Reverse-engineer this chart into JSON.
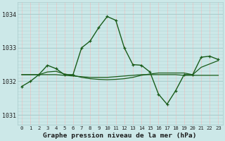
{
  "title": "Graphe pression niveau de la mer (hPa)",
  "bg_color": "#cce8e8",
  "grid_color_v": "#e8c8c8",
  "grid_color_h": "#aacccc",
  "line_color": "#1a5c1a",
  "line1": [
    1031.85,
    1032.0,
    1032.2,
    1032.48,
    1032.38,
    1032.2,
    1032.2,
    1033.0,
    1033.2,
    1033.6,
    1033.93,
    1033.82,
    1033.0,
    1032.5,
    1032.48,
    1032.28,
    1031.62,
    1031.32,
    1031.72,
    1032.2,
    1032.2,
    1032.72,
    1032.75,
    1032.65
  ],
  "line2": [
    1032.2,
    1032.2,
    1032.2,
    1032.28,
    1032.3,
    1032.22,
    1032.18,
    1032.12,
    1032.08,
    1032.06,
    1032.05,
    1032.06,
    1032.08,
    1032.12,
    1032.18,
    1032.22,
    1032.25,
    1032.25,
    1032.25,
    1032.25,
    1032.2,
    1032.42,
    1032.52,
    1032.62
  ],
  "line3": [
    1032.2,
    1032.2,
    1032.2,
    1032.2,
    1032.2,
    1032.18,
    1032.16,
    1032.14,
    1032.12,
    1032.12,
    1032.12,
    1032.14,
    1032.16,
    1032.18,
    1032.2,
    1032.2,
    1032.2,
    1032.2,
    1032.2,
    1032.18,
    1032.18,
    1032.18,
    1032.18,
    1032.18
  ],
  "yticks": [
    1031,
    1032,
    1033,
    1034
  ],
  "xticks": [
    0,
    1,
    2,
    3,
    4,
    5,
    6,
    7,
    8,
    9,
    10,
    11,
    12,
    13,
    14,
    15,
    16,
    17,
    18,
    19,
    20,
    21,
    22,
    23
  ],
  "xlim": [
    -0.5,
    23.5
  ],
  "ylim": [
    1030.7,
    1034.35
  ]
}
